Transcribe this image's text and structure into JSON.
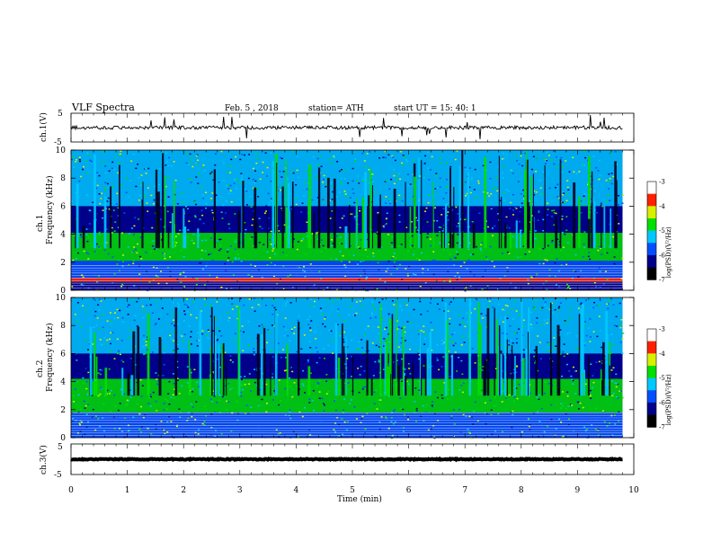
{
  "header": {
    "title": "VLF  Spectra",
    "date": "Feb. 5  , 2018",
    "station": "station= ATH",
    "start_time": "start  UT  =   15: 40: 1"
  },
  "colors": {
    "low": "#00008b",
    "mid_low": "#0050ff",
    "mid": "#00c8ff",
    "mid_high": "#00e000",
    "high_mid": "#d8f000",
    "high": "#ff2000",
    "top": "#ffffff"
  },
  "chart_data": [
    {
      "type": "line",
      "name": "ch1-waveform",
      "ylabel": "ch.1(V)",
      "ylim": [
        -5,
        5
      ],
      "yticks": [
        "5",
        "-5"
      ],
      "baseline": 0,
      "noise_amplitude": 0.6
    },
    {
      "type": "heatmap",
      "name": "ch1-spectrogram",
      "ylabel": "ch.1\nFrequency (kHz)",
      "ylabel_line1": "ch.1",
      "ylabel_line2": "Frequency  (kHz)",
      "ylim": [
        0,
        10
      ],
      "yticks": [
        "0",
        "2",
        "4",
        "6",
        "8",
        "10"
      ],
      "colorbar": {
        "label": "log(PSD)(V²/Hz)",
        "range": [
          -7,
          -3
        ],
        "ticks": [
          "-3",
          "-4",
          "-5",
          "-6",
          "-7"
        ]
      },
      "bands_khz": [
        {
          "from": 0,
          "to": 0.6,
          "level": "low"
        },
        {
          "from": 0.6,
          "to": 0.9,
          "level": "high"
        },
        {
          "from": 0.9,
          "to": 2.1,
          "level": "mid_low"
        },
        {
          "from": 2.1,
          "to": 4.1,
          "level": "mid_high"
        },
        {
          "from": 4.1,
          "to": 6.0,
          "level": "low"
        },
        {
          "from": 6.0,
          "to": 10,
          "level": "mid"
        }
      ]
    },
    {
      "type": "heatmap",
      "name": "ch2-spectrogram",
      "ylabel_line1": "ch.2",
      "ylabel_line2": "Frequency  (kHz)",
      "ylim": [
        0,
        10
      ],
      "yticks": [
        "0",
        "2",
        "4",
        "6",
        "8",
        "10"
      ],
      "colorbar": {
        "label": "log(PSD)(V²/Hz)",
        "range": [
          -7,
          -3
        ],
        "ticks": [
          "-3",
          "-4",
          "-5",
          "-6",
          "-7"
        ]
      },
      "bands_khz": [
        {
          "from": 0,
          "to": 1.8,
          "level": "mid_low"
        },
        {
          "from": 1.8,
          "to": 4.2,
          "level": "mid_high"
        },
        {
          "from": 4.2,
          "to": 6.0,
          "level": "low"
        },
        {
          "from": 6.0,
          "to": 10,
          "level": "mid"
        }
      ]
    },
    {
      "type": "line",
      "name": "ch3-waveform",
      "ylabel": "ch.3(V)",
      "ylim": [
        -5,
        5
      ],
      "yticks": [
        "5",
        "-5"
      ],
      "baseline": 0,
      "noise_amplitude": 0.15
    }
  ],
  "xaxis": {
    "label": "Time  (min)",
    "range": [
      0,
      10
    ],
    "ticks": [
      "0",
      "1",
      "2",
      "3",
      "4",
      "5",
      "6",
      "7",
      "8",
      "9",
      "10"
    ],
    "data_end": 9.8
  }
}
